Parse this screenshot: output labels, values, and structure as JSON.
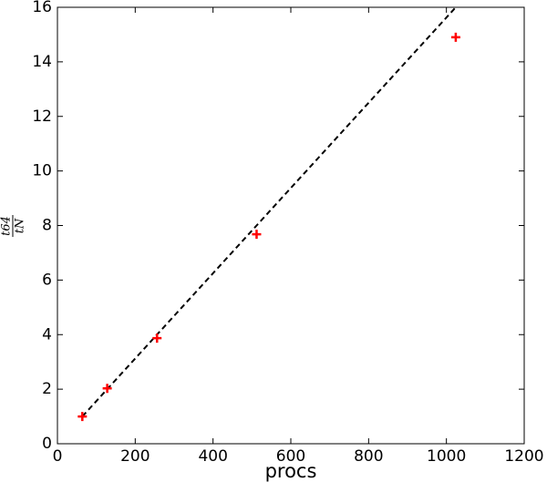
{
  "chart_data": {
    "type": "scatter",
    "xlabel": "procs",
    "ylabel_numerator": "t64",
    "ylabel_denominator": "tN",
    "points": {
      "x": [
        64,
        128,
        256,
        512,
        1024
      ],
      "y": [
        1,
        2.03,
        3.87,
        7.68,
        14.9
      ],
      "color": "#ff0000"
    },
    "reference_line": {
      "x": [
        64,
        1024
      ],
      "y": [
        1,
        16
      ],
      "color": "#000000",
      "dashed": true
    },
    "xlim": [
      0,
      1200
    ],
    "xticks": [
      0,
      200,
      400,
      600,
      800,
      1000,
      1200
    ],
    "ylim": [
      0,
      16
    ],
    "yticks": [
      0,
      2,
      4,
      6,
      8,
      10,
      12,
      14,
      16
    ],
    "grid": false
  }
}
